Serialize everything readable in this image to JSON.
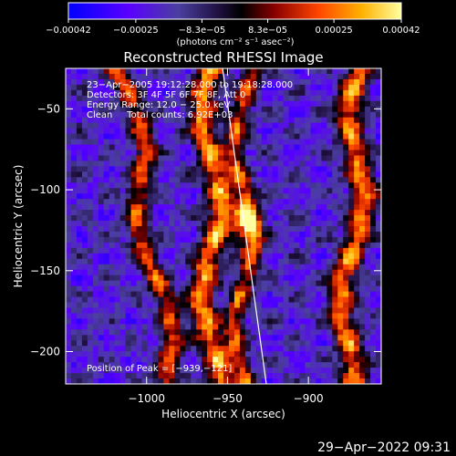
{
  "chart_data": {
    "type": "heatmap",
    "title": "Reconstructed RHESSI Image",
    "xlabel": "Heliocentric X (arcsec)",
    "ylabel": "Heliocentric Y (arcsec)",
    "xlim": [
      -1050,
      -855
    ],
    "ylim": [
      -220,
      -25
    ],
    "xticks": [
      -1000,
      -950,
      -900
    ],
    "xtick_labels": [
      "−1000",
      "−950",
      "−900"
    ],
    "yticks": [
      -50,
      -100,
      -150,
      -200
    ],
    "ytick_labels": [
      "−50",
      "−100",
      "−150",
      "−200"
    ],
    "colorbar": {
      "min": -0.00042,
      "max": 0.00042,
      "ticks": [
        -0.00042,
        -0.00025,
        -8.3e-05,
        8.3e-05,
        0.00025,
        0.00042
      ],
      "tick_labels": [
        "−0.00042",
        "−0.00025",
        "−8.3e−05",
        "8.3e−05",
        "0.00025",
        "0.00042"
      ],
      "units_label": "(photons cm⁻² s⁻¹ asec⁻²)"
    },
    "annotations": [
      "23−Apr−2005 19:12:28.000 to 19:18:28.000",
      "Detectors: 3F 4F 5F 6F 7F 8F, Att 0",
      "Energy Range: 12.0 − 25.0 keV",
      "Clean     Total counts: 6.92E+03"
    ],
    "peak_label": "Position of Peak = [−939,−121]",
    "peak": [
      -939,
      -121
    ],
    "limb_line": [
      [
        -953,
        -25
      ],
      [
        -926,
        -220
      ]
    ],
    "bands": [
      {
        "x0": -1000,
        "x_slope": -0.15,
        "amp": 0.8,
        "width": 7
      },
      {
        "x0": -960,
        "x_slope": 0.0,
        "amp": 1.0,
        "width": 8
      },
      {
        "x0": -940,
        "x_slope": 0.0,
        "amp": 0.8,
        "width": 6
      },
      {
        "x0": -872,
        "x_slope": 0.05,
        "amp": 0.95,
        "width": 8
      }
    ]
  },
  "footer_timestamp": "29−Apr−2022 09:31"
}
